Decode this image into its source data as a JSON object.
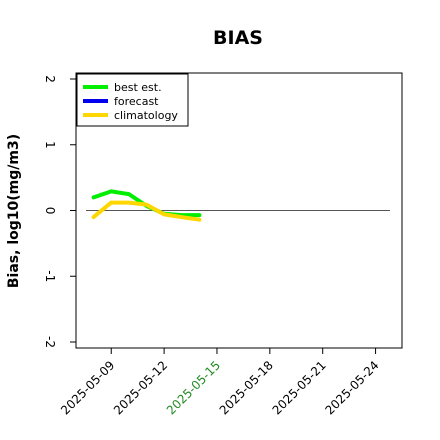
{
  "chart_data": {
    "type": "line",
    "title": "BIAS",
    "xlabel": "",
    "ylabel": "Bias, log10(mg/m3)",
    "xlim": [
      "2025-05-07T00:00",
      "2025-05-25T12:00"
    ],
    "ylim": [
      -2.0,
      2.0
    ],
    "x_ticks": [
      "2025-05-09",
      "2025-05-12",
      "2025-05-15",
      "2025-05-18",
      "2025-05-21",
      "2025-05-24"
    ],
    "x_tick_colors": [
      "#000000",
      "#000000",
      "#228b22",
      "#000000",
      "#000000",
      "#000000"
    ],
    "y_ticks": [
      -2,
      -1,
      0,
      1,
      2
    ],
    "reference_line": 0,
    "grid": false,
    "legend_position": "top-left",
    "series": [
      {
        "name": "best est.",
        "color": "#00ee00",
        "x": [
          "2025-05-08",
          "2025-05-09",
          "2025-05-10",
          "2025-05-11",
          "2025-05-12",
          "2025-05-13",
          "2025-05-14"
        ],
        "y": [
          0.2,
          0.29,
          0.25,
          0.07,
          -0.05,
          -0.07,
          -0.07
        ]
      },
      {
        "name": "forecast",
        "color": "#0000ee",
        "x": [],
        "y": []
      },
      {
        "name": "climatology",
        "color": "#ffd700",
        "x": [
          "2025-05-08",
          "2025-05-09",
          "2025-05-10",
          "2025-05-11",
          "2025-05-12",
          "2025-05-13",
          "2025-05-14"
        ],
        "y": [
          -0.1,
          0.12,
          0.12,
          0.09,
          -0.06,
          -0.1,
          -0.14
        ]
      }
    ]
  }
}
